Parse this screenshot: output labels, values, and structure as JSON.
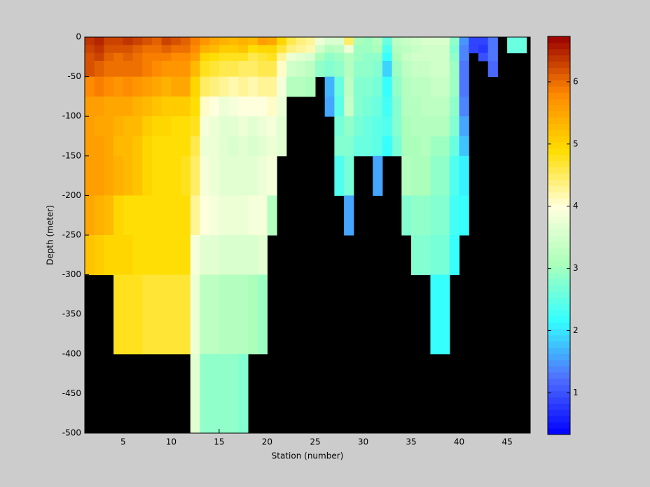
{
  "chart_data": {
    "type": "heatmap",
    "xlabel": "Station (number)",
    "ylabel": "Depth (meter)",
    "x_edges": [
      1,
      2,
      3,
      4,
      5,
      6,
      7,
      8,
      9,
      10,
      11,
      12,
      13,
      14,
      15,
      16,
      17,
      18,
      19,
      20,
      21,
      22,
      23,
      24,
      25,
      26,
      27,
      28,
      29,
      30,
      31,
      32,
      33,
      34,
      35,
      36,
      37,
      38,
      39,
      40,
      41,
      42,
      43,
      44,
      45,
      46,
      47
    ],
    "y_edges": [
      0,
      -10,
      -20,
      -30,
      -50,
      -75,
      -100,
      -125,
      -150,
      -200,
      -250,
      -300,
      -400,
      -500
    ],
    "z": [
      [
        6.4,
        6.3,
        6.2,
        6.2,
        5.8,
        5.6,
        5.6,
        5.6,
        5.6,
        5.5,
        5.2,
        null,
        null
      ],
      [
        6.5,
        6.4,
        6.3,
        6.1,
        5.9,
        5.6,
        5.5,
        5.6,
        5.6,
        5.4,
        5.1,
        null,
        null
      ],
      [
        6.3,
        6.2,
        6.1,
        6.0,
        5.8,
        5.5,
        5.5,
        5.5,
        5.5,
        5.3,
        5.0,
        null,
        null
      ],
      [
        6.3,
        6.2,
        6.0,
        6.0,
        5.7,
        5.5,
        5.4,
        5.3,
        5.4,
        5.0,
        5.0,
        4.8,
        null
      ],
      [
        6.4,
        6.2,
        6.1,
        6.0,
        5.8,
        5.5,
        5.3,
        5.3,
        5.3,
        4.9,
        5.0,
        4.8,
        null
      ],
      [
        6.3,
        6.1,
        6.0,
        6.0,
        5.7,
        5.4,
        5.3,
        5.2,
        5.2,
        4.9,
        4.9,
        4.8,
        null
      ],
      [
        6.2,
        6.0,
        5.9,
        5.9,
        5.6,
        5.3,
        5.1,
        5.0,
        5.0,
        4.9,
        4.9,
        4.7,
        null
      ],
      [
        6.1,
        6.0,
        5.9,
        5.8,
        5.5,
        5.2,
        5.0,
        4.9,
        4.9,
        4.9,
        4.9,
        4.7,
        null
      ],
      [
        6.3,
        6.1,
        5.9,
        5.7,
        5.4,
        5.1,
        5.0,
        4.9,
        4.9,
        4.9,
        4.9,
        4.7,
        null
      ],
      [
        6.2,
        6.0,
        5.8,
        5.7,
        5.5,
        5.1,
        4.9,
        4.9,
        4.9,
        4.9,
        4.9,
        4.7,
        null
      ],
      [
        6.1,
        6.0,
        5.8,
        5.7,
        5.5,
        5.1,
        4.9,
        4.9,
        4.8,
        4.9,
        4.9,
        4.7,
        null
      ],
      [
        5.9,
        5.8,
        5.6,
        5.3,
        5.0,
        4.9,
        4.8,
        4.6,
        4.5,
        4.3,
        3.9,
        3.8,
        3.7
      ],
      [
        5.7,
        5.4,
        5.0,
        4.8,
        4.5,
        4.1,
        3.9,
        3.8,
        3.9,
        4.0,
        3.7,
        3.3,
        2.9
      ],
      [
        5.5,
        5.3,
        4.9,
        4.7,
        4.4,
        4.0,
        3.8,
        3.8,
        3.8,
        3.9,
        3.7,
        3.3,
        2.9
      ],
      [
        5.4,
        5.1,
        4.8,
        4.6,
        4.3,
        3.8,
        3.7,
        3.7,
        3.7,
        3.8,
        3.6,
        3.2,
        2.9
      ],
      [
        5.3,
        5.1,
        4.8,
        4.6,
        4.2,
        3.9,
        3.7,
        3.6,
        3.7,
        3.8,
        3.6,
        3.2,
        2.9
      ],
      [
        5.4,
        5.2,
        4.8,
        4.5,
        4.3,
        4.0,
        3.8,
        3.7,
        3.7,
        3.8,
        3.6,
        3.2,
        2.8
      ],
      [
        5.3,
        4.9,
        4.6,
        4.5,
        4.2,
        4.0,
        3.7,
        3.6,
        3.7,
        3.9,
        3.6,
        3.1,
        null
      ],
      [
        5.6,
        5.0,
        4.7,
        4.6,
        4.3,
        4.0,
        3.8,
        3.7,
        3.8,
        3.9,
        3.7,
        3.0,
        null
      ],
      [
        5.5,
        5.0,
        4.8,
        4.6,
        4.3,
        4.1,
        3.9,
        3.8,
        3.9,
        3.2,
        null,
        null,
        null
      ],
      [
        5.0,
        4.7,
        4.3,
        4.1,
        3.9,
        3.8,
        3.7,
        3.7,
        null,
        null,
        null,
        null,
        null
      ],
      [
        4.6,
        4.4,
        3.8,
        3.5,
        3.2,
        null,
        null,
        null,
        null,
        null,
        null,
        null,
        null
      ],
      [
        4.4,
        4.3,
        3.7,
        3.4,
        3.2,
        null,
        null,
        null,
        null,
        null,
        null,
        null,
        null
      ],
      [
        4.3,
        4.2,
        3.6,
        3.3,
        3.1,
        null,
        null,
        null,
        null,
        null,
        null,
        null,
        null
      ],
      [
        3.8,
        3.5,
        3.1,
        2.9,
        null,
        null,
        null,
        null,
        null,
        null,
        null,
        null,
        null
      ],
      [
        3.6,
        3.2,
        2.9,
        2.8,
        1.7,
        1.6,
        null,
        null,
        null,
        null,
        null,
        null,
        null
      ],
      [
        3.6,
        3.3,
        3.0,
        2.9,
        2.6,
        2.5,
        2.7,
        2.8,
        2.4,
        null,
        null,
        null,
        null
      ],
      [
        4.5,
        3.8,
        3.2,
        3.2,
        3.3,
        3.4,
        2.9,
        2.8,
        2.7,
        1.6,
        null,
        null,
        null
      ],
      [
        3.1,
        3.0,
        3.0,
        2.9,
        2.8,
        2.8,
        2.7,
        2.6,
        null,
        null,
        null,
        null,
        null
      ],
      [
        3.0,
        3.0,
        2.9,
        2.9,
        2.8,
        2.7,
        2.6,
        2.6,
        null,
        null,
        null,
        null,
        null
      ],
      [
        3.2,
        3.1,
        2.9,
        2.8,
        2.7,
        2.6,
        2.5,
        2.5,
        1.6,
        null,
        null,
        null,
        null
      ],
      [
        2.6,
        2.4,
        2.2,
        1.9,
        2.2,
        2.3,
        2.4,
        2.2,
        null,
        null,
        null,
        null,
        null
      ],
      [
        3.3,
        3.2,
        3.1,
        3.0,
        2.9,
        2.8,
        2.8,
        2.7,
        null,
        null,
        null,
        null,
        null
      ],
      [
        3.4,
        3.3,
        3.4,
        3.3,
        3.2,
        3.2,
        3.1,
        3.1,
        3.2,
        2.8,
        null,
        null,
        null
      ],
      [
        3.5,
        3.4,
        3.5,
        3.4,
        3.3,
        3.2,
        3.2,
        3.1,
        3.1,
        2.9,
        2.8,
        null,
        null
      ],
      [
        3.6,
        3.5,
        3.5,
        3.4,
        3.3,
        3.3,
        3.2,
        3.2,
        3.1,
        2.9,
        2.8,
        null,
        null
      ],
      [
        3.6,
        3.5,
        3.5,
        3.5,
        3.4,
        3.3,
        3.2,
        3.0,
        2.9,
        2.8,
        2.7,
        2.2,
        null
      ],
      [
        3.6,
        3.5,
        3.5,
        3.5,
        3.4,
        3.3,
        3.2,
        3.0,
        2.9,
        2.8,
        2.7,
        2.2,
        null
      ],
      [
        2.9,
        2.8,
        2.9,
        3.0,
        3.0,
        2.9,
        2.8,
        2.6,
        2.4,
        2.3,
        2.2,
        null,
        null
      ],
      [
        1.5,
        1.4,
        1.4,
        1.3,
        1.3,
        1.4,
        1.6,
        1.8,
        2.1,
        2.2,
        null,
        null,
        null
      ],
      [
        0.9,
        0.9,
        null,
        null,
        null,
        null,
        null,
        null,
        null,
        null,
        null,
        null,
        null
      ],
      [
        0.9,
        0.8,
        1.0,
        null,
        null,
        null,
        null,
        null,
        null,
        null,
        null,
        null,
        null
      ],
      [
        1.3,
        1.3,
        1.3,
        1.2,
        null,
        null,
        null,
        null,
        null,
        null,
        null,
        null,
        null
      ],
      [
        null,
        null,
        null,
        null,
        null,
        null,
        null,
        null,
        null,
        null,
        null,
        null,
        null
      ],
      [
        2.6,
        2.6,
        null,
        null,
        null,
        null,
        null,
        null,
        null,
        null,
        null,
        null,
        null
      ],
      [
        2.6,
        2.6,
        null,
        null,
        null,
        null,
        null,
        null,
        null,
        null,
        null,
        null,
        null
      ]
    ],
    "xlim": [
      1,
      47.4
    ],
    "ylim": [
      -500,
      0
    ],
    "xticks": [
      5,
      10,
      15,
      20,
      25,
      30,
      35,
      40,
      45
    ],
    "yticks": [
      0,
      -50,
      -100,
      -150,
      -200,
      -250,
      -300,
      -350,
      -400,
      -450,
      -500
    ],
    "clim": [
      0.33,
      6.73
    ],
    "cticks": [
      1,
      2,
      3,
      4,
      5,
      6
    ],
    "colormap": [
      "#0000ff",
      "#5070ff",
      "#33ffff",
      "#aaffbb",
      "#ffffdd",
      "#ffdd00",
      "#ff8800",
      "#990000"
    ],
    "missing_color": "#000000"
  }
}
